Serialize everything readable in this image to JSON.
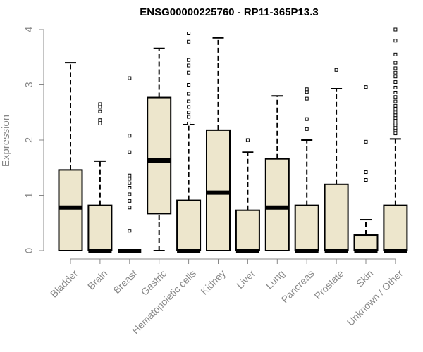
{
  "chart_data": {
    "type": "box",
    "title": "ENSG00000225760 - RP11-365P13.3",
    "xlabel": "",
    "ylabel": "Expression",
    "ylim": [
      0,
      4
    ],
    "yticks": [
      0,
      1,
      2,
      3,
      4
    ],
    "grid": false,
    "legend": "none",
    "colors": {
      "box_fill": "#ede6cc",
      "box_stroke": "#000000",
      "axis_text": "#888888"
    },
    "categories": [
      "Bladder",
      "Brain",
      "Breast",
      "Gastric",
      "Hematopoietic cells",
      "Kidney",
      "Liver",
      "Lung",
      "Pancreas",
      "Prostate",
      "Skin",
      "Unknown / Other"
    ],
    "boxes": [
      {
        "category": "Bladder",
        "min": 0,
        "q1": 0,
        "median": 0.78,
        "q3": 1.46,
        "max": 3.4,
        "outliers": []
      },
      {
        "category": "Brain",
        "min": 0,
        "q1": 0,
        "median": 0,
        "q3": 0.82,
        "max": 1.62,
        "outliers": [
          2.3,
          2.36,
          2.52,
          2.6,
          2.65
        ]
      },
      {
        "category": "Breast",
        "min": 0,
        "q1": 0,
        "median": 0,
        "q3": 0,
        "max": 0,
        "outliers": [
          0.36,
          0.78,
          0.9,
          1.02,
          1.14,
          1.22,
          1.3,
          1.36,
          1.78,
          2.08,
          3.12
        ]
      },
      {
        "category": "Gastric",
        "min": 0,
        "q1": 0.67,
        "median": 1.63,
        "q3": 2.77,
        "max": 3.66,
        "outliers": []
      },
      {
        "category": "Hematopoietic cells",
        "min": 0,
        "q1": 0,
        "median": 0,
        "q3": 0.91,
        "max": 2.28,
        "outliers": [
          2.3,
          2.42,
          2.5,
          2.6,
          2.7,
          2.84,
          3.0,
          3.22,
          3.35,
          3.45,
          3.78,
          3.93
        ]
      },
      {
        "category": "Kidney",
        "min": 0,
        "q1": 0,
        "median": 1.05,
        "q3": 2.18,
        "max": 3.85,
        "outliers": []
      },
      {
        "category": "Liver",
        "min": 0,
        "q1": 0,
        "median": 0,
        "q3": 0.73,
        "max": 1.78,
        "outliers": [
          2.0
        ]
      },
      {
        "category": "Lung",
        "min": 0,
        "q1": 0,
        "median": 0.78,
        "q3": 1.66,
        "max": 2.8,
        "outliers": []
      },
      {
        "category": "Pancreas",
        "min": 0,
        "q1": 0,
        "median": 0,
        "q3": 0.82,
        "max": 2.0,
        "outliers": [
          2.2,
          2.38,
          2.75,
          2.87,
          2.92
        ]
      },
      {
        "category": "Prostate",
        "min": 0,
        "q1": 0,
        "median": 0,
        "q3": 1.2,
        "max": 2.93,
        "outliers": [
          3.27
        ]
      },
      {
        "category": "Skin",
        "min": 0,
        "q1": 0,
        "median": 0,
        "q3": 0.28,
        "max": 0.56,
        "outliers": [
          1.28,
          1.42,
          1.97,
          2.96
        ]
      },
      {
        "category": "Unknown / Other",
        "min": 0,
        "q1": 0,
        "median": 0,
        "q3": 0.82,
        "max": 2.02,
        "outliers": [
          2.12,
          2.18,
          2.22,
          2.27,
          2.3,
          2.35,
          2.4,
          2.45,
          2.5,
          2.56,
          2.62,
          2.7,
          2.78,
          2.86,
          2.95,
          3.05,
          3.15,
          3.22,
          3.3,
          3.4,
          3.55,
          3.8,
          4.0
        ]
      }
    ]
  }
}
